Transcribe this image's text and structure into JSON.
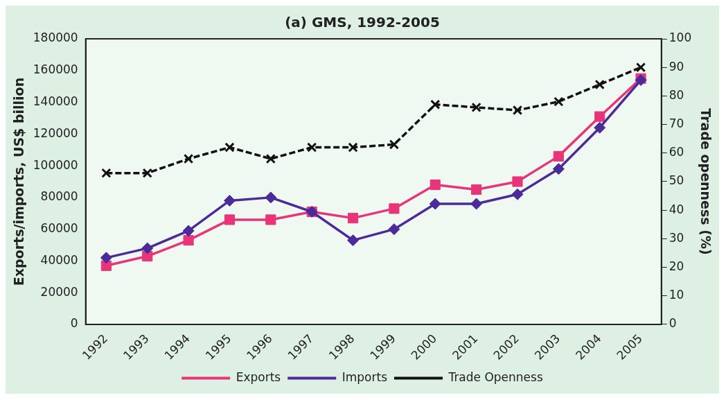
{
  "chart_data": {
    "type": "line",
    "title": "(a) GMS, 1992-2005",
    "ylabel": "Exports/imports, US$ billion",
    "y2label": "Trade openness (%)",
    "categories": [
      "1992",
      "1993",
      "1994",
      "1995",
      "1996",
      "1997",
      "1998",
      "1999",
      "2000",
      "2001",
      "2002",
      "2003",
      "2004",
      "2005"
    ],
    "series": [
      {
        "name": "Exports",
        "color": "#e8357a",
        "marker": "square",
        "line_style": "solid",
        "values": [
          37000,
          43000,
          53000,
          66000,
          66000,
          71000,
          67000,
          73000,
          88000,
          85000,
          90000,
          106000,
          131000,
          155000
        ]
      },
      {
        "name": "Imports",
        "color": "#4b2a9a",
        "marker": "diamond",
        "line_style": "solid",
        "values": [
          42000,
          48000,
          59000,
          78000,
          80000,
          71000,
          53000,
          60000,
          76000,
          76000,
          82000,
          98000,
          124000,
          154000
        ]
      },
      {
        "name": "Trade Openness",
        "color": "#111111",
        "marker": "cross",
        "line_style": "dashed",
        "axis": "y2",
        "values": [
          53,
          53,
          58,
          62,
          58,
          62,
          62,
          63,
          77,
          76,
          75,
          78,
          84,
          90
        ]
      }
    ],
    "ylim": [
      0,
      180000
    ],
    "yticks": [
      0,
      20000,
      40000,
      60000,
      80000,
      100000,
      120000,
      140000,
      160000,
      180000
    ],
    "y2lim": [
      0,
      100
    ],
    "y2ticks": [
      0,
      10,
      20,
      30,
      40,
      50,
      60,
      70,
      80,
      90,
      100
    ],
    "grid": false,
    "legend": "bottom"
  }
}
